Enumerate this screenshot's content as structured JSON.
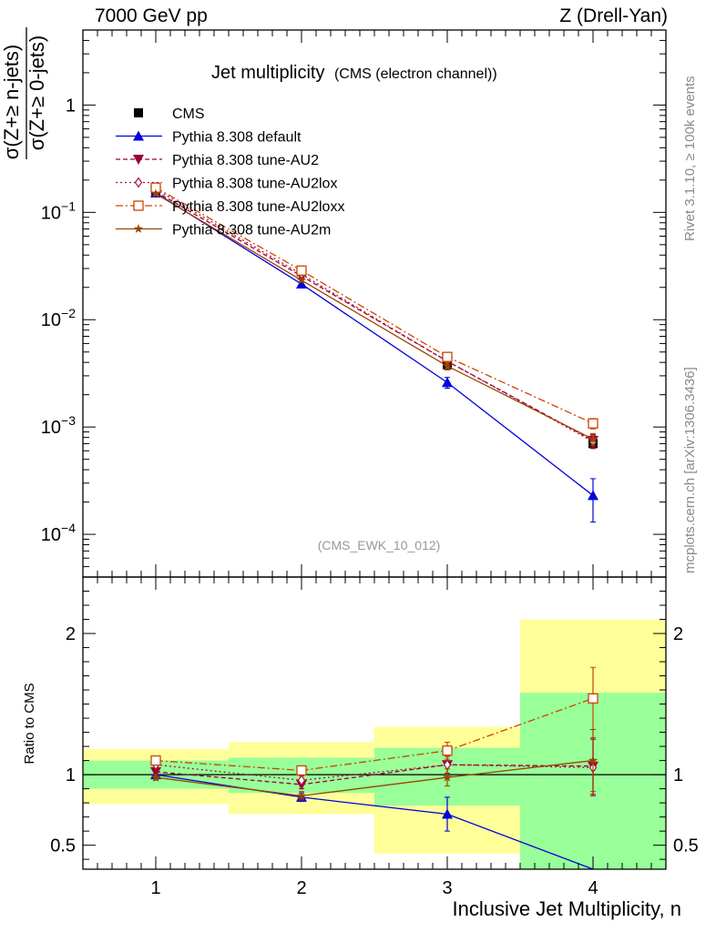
{
  "header": {
    "left": "7000 GeV pp",
    "right": "Z (Drell-Yan)"
  },
  "side_text": {
    "top": "Rivet 3.1.10, ≥ 100k events",
    "bottom": "mcplots.cern.ch [arXiv:1306.3436]"
  },
  "chart_data": [
    {
      "type": "line",
      "title": "Jet multiplicity",
      "subtitle": "(CMS (electron channel))",
      "watermark": "(CMS_EWK_10_012)",
      "ylabel_numerator": "σ(Z+≥ n-jets)",
      "ylabel_denominator": "σ(Z+≥ 0-jets)",
      "yscale": "log",
      "xlim": [
        0.5,
        4.5
      ],
      "ylim": [
        4e-05,
        5
      ],
      "xticks": [
        1,
        2,
        3,
        4
      ],
      "yticks": [
        {
          "value": 1,
          "label": "1"
        },
        {
          "value": 0.1,
          "label": "10",
          "exp": "−1"
        },
        {
          "value": 0.01,
          "label": "10",
          "exp": "−2"
        },
        {
          "value": 0.001,
          "label": "10",
          "exp": "−3"
        },
        {
          "value": 0.0001,
          "label": "10",
          "exp": "−4"
        }
      ],
      "legend_position": "top-left",
      "x": [
        1,
        2,
        3,
        4
      ],
      "series": [
        {
          "name": "CMS",
          "values": [
            0.152,
            0.028,
            0.0038,
            0.0007
          ],
          "err": [
            0.006,
            0.002,
            0.0003,
            8e-05
          ],
          "color": "#000000",
          "marker": "filled-square",
          "dash": "none"
        },
        {
          "name": "Pythia 8.308 default",
          "values": [
            0.152,
            0.0215,
            0.0026,
            0.00023
          ],
          "err": [
            0.003,
            0.0008,
            0.0003,
            0.0001
          ],
          "color": "#0000dd",
          "marker": "filled-triangle-up",
          "dash": "solid"
        },
        {
          "name": "Pythia 8.308 tune-AU2",
          "values": [
            0.156,
            0.0255,
            0.0041,
            0.00075
          ],
          "err": [
            0.003,
            0.0008,
            0.0003,
            0.0001
          ],
          "color": "#990033",
          "marker": "filled-triangle-down",
          "dash": "5,3"
        },
        {
          "name": "Pythia 8.308 tune-AU2lox",
          "values": [
            0.164,
            0.0265,
            0.0041,
            0.00073
          ],
          "err": [
            0.003,
            0.0008,
            0.0003,
            0.0001
          ],
          "color": "#aa1144",
          "marker": "open-diamond",
          "dash": "2,3"
        },
        {
          "name": "Pythia 8.308 tune-AU2loxx",
          "values": [
            0.17,
            0.0287,
            0.0045,
            0.00108
          ],
          "err": [
            0.003,
            0.0008,
            0.0003,
            0.00012
          ],
          "color": "#cc4400",
          "marker": "open-square",
          "dash": "8,3,2,3"
        },
        {
          "name": "Pythia 8.308 tune-AU2m",
          "values": [
            0.149,
            0.0233,
            0.0037,
            0.00077
          ],
          "err": [
            0.003,
            0.0008,
            0.0003,
            0.0001
          ],
          "color": "#994400",
          "marker": "star",
          "dash": "solid"
        }
      ]
    },
    {
      "type": "line",
      "ylabel": "Ratio to CMS",
      "xlabel": "Inclusive Jet Multiplicity, n",
      "ylim": [
        0.33,
        2.4
      ],
      "yticks": [
        0.5,
        1,
        2
      ],
      "bands": [
        {
          "xmin": 0.5,
          "xmax": 1.5,
          "green": [
            0.9,
            1.1
          ],
          "yellow": [
            0.79,
            1.18
          ]
        },
        {
          "xmin": 1.5,
          "xmax": 2.5,
          "green": [
            0.87,
            1.12
          ],
          "yellow": [
            0.72,
            1.23
          ]
        },
        {
          "xmin": 2.5,
          "xmax": 3.5,
          "green": [
            0.78,
            1.19
          ],
          "yellow": [
            0.44,
            1.34
          ]
        },
        {
          "xmin": 3.5,
          "xmax": 4.5,
          "green": [
            0.33,
            1.58
          ],
          "yellow": [
            0.33,
            2.1
          ]
        }
      ],
      "x": [
        1,
        2,
        3,
        4
      ],
      "series": [
        {
          "name": "Pythia 8.308 default",
          "values": [
            1.0,
            0.84,
            0.72,
            0.33
          ],
          "err": [
            0.02,
            0.03,
            0.12,
            0.0
          ]
        },
        {
          "name": "Pythia 8.308 tune-AU2",
          "values": [
            1.02,
            0.93,
            1.07,
            1.06
          ],
          "err": [
            0.02,
            0.03,
            0.06,
            0.2
          ]
        },
        {
          "name": "Pythia 8.308 tune-AU2lox",
          "values": [
            1.07,
            0.96,
            1.07,
            1.05
          ],
          "err": [
            0.02,
            0.03,
            0.06,
            0.2
          ]
        },
        {
          "name": "Pythia 8.308 tune-AU2loxx",
          "values": [
            1.1,
            1.03,
            1.17,
            1.54
          ],
          "err": [
            0.02,
            0.03,
            0.06,
            0.22
          ]
        },
        {
          "name": "Pythia 8.308 tune-AU2m",
          "values": [
            0.98,
            0.85,
            0.98,
            1.1
          ],
          "err": [
            0.02,
            0.03,
            0.06,
            0.22
          ]
        }
      ]
    }
  ]
}
